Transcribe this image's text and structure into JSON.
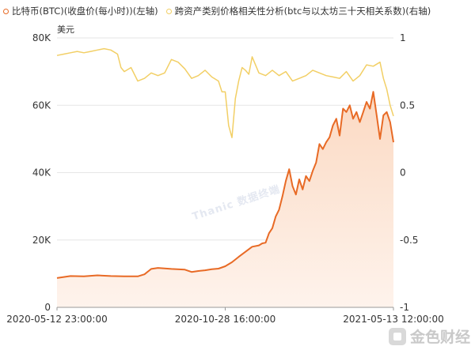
{
  "legend": {
    "btc_label": "比特币(BTC)(收盘价(每小时))(左轴)",
    "corr_label": "跨资产类别价格相关性分析(btc与以太坊三十天相关系数)(右轴)"
  },
  "unit_label": "美元",
  "watermark": "Thanic 数据终端",
  "logo_text": "金色财经",
  "colors": {
    "btc": "#e86a25",
    "btc_fill_top": "#fbd9c2",
    "btc_fill_bottom": "#fef3ec",
    "corr": "#f2cf65",
    "grid": "#e6e6e6",
    "axis_text": "#333333"
  },
  "chart_data": {
    "type": "line",
    "x_tick_labels": [
      "2020-05-12 23:00:00",
      "2020-10-28 16:00:00",
      "2021-05-13 12:00:00"
    ],
    "left_axis": {
      "ticks": [
        "0",
        "20K",
        "40K",
        "60K",
        "80K"
      ],
      "ylim": [
        0,
        80000
      ]
    },
    "right_axis": {
      "ticks": [
        "-1",
        "-0.5",
        "0",
        "0.5",
        "1"
      ],
      "ylim": [
        -1,
        1
      ]
    },
    "grid": true,
    "legend_position": "top-left",
    "series": [
      {
        "name": "比特币(BTC)(收盘价(每小时))(左轴)",
        "axis": "left",
        "x": [
          0,
          0.04,
          0.08,
          0.12,
          0.16,
          0.2,
          0.24,
          0.26,
          0.28,
          0.3,
          0.34,
          0.38,
          0.4,
          0.42,
          0.44,
          0.46,
          0.48,
          0.5,
          0.52,
          0.54,
          0.56,
          0.58,
          0.6,
          0.61,
          0.62,
          0.63,
          0.64,
          0.65,
          0.66,
          0.67,
          0.68,
          0.69,
          0.7,
          0.71,
          0.72,
          0.73,
          0.74,
          0.75,
          0.76,
          0.77,
          0.78,
          0.79,
          0.8,
          0.81,
          0.82,
          0.83,
          0.84,
          0.85,
          0.86,
          0.87,
          0.88,
          0.89,
          0.9,
          0.91,
          0.92,
          0.93,
          0.94,
          0.95,
          0.96,
          0.97,
          0.98,
          0.99,
          1.0
        ],
        "values": [
          8700,
          9300,
          9200,
          9500,
          9300,
          9200,
          9200,
          9800,
          11400,
          11700,
          11400,
          11200,
          10500,
          10800,
          11000,
          11300,
          11500,
          12200,
          13400,
          15000,
          16500,
          18000,
          18400,
          19000,
          19200,
          22000,
          23500,
          27000,
          29000,
          33000,
          37500,
          41000,
          36000,
          33500,
          38000,
          35000,
          39000,
          37500,
          40500,
          43000,
          48500,
          47000,
          49000,
          50500,
          54000,
          56000,
          51000,
          59000,
          58000,
          60000,
          56000,
          58000,
          55000,
          58000,
          61000,
          59000,
          64000,
          57000,
          50000,
          57000,
          58000,
          55000,
          49000
        ]
      },
      {
        "name": "跨资产类别价格相关性分析(btc与以太坊三十天相关系数)(右轴)",
        "axis": "right",
        "x": [
          0,
          0.02,
          0.04,
          0.06,
          0.08,
          0.1,
          0.12,
          0.14,
          0.16,
          0.18,
          0.19,
          0.2,
          0.22,
          0.24,
          0.26,
          0.28,
          0.3,
          0.32,
          0.34,
          0.36,
          0.38,
          0.4,
          0.42,
          0.44,
          0.46,
          0.48,
          0.49,
          0.5,
          0.51,
          0.52,
          0.53,
          0.54,
          0.55,
          0.56,
          0.57,
          0.58,
          0.6,
          0.62,
          0.64,
          0.66,
          0.68,
          0.7,
          0.72,
          0.74,
          0.76,
          0.78,
          0.8,
          0.82,
          0.84,
          0.86,
          0.88,
          0.9,
          0.92,
          0.94,
          0.96,
          0.97,
          0.98,
          0.99,
          1.0
        ],
        "values": [
          0.87,
          0.88,
          0.89,
          0.9,
          0.89,
          0.9,
          0.91,
          0.92,
          0.91,
          0.88,
          0.78,
          0.75,
          0.78,
          0.68,
          0.7,
          0.74,
          0.72,
          0.74,
          0.84,
          0.82,
          0.77,
          0.7,
          0.72,
          0.76,
          0.71,
          0.68,
          0.6,
          0.6,
          0.35,
          0.26,
          0.55,
          0.68,
          0.78,
          0.76,
          0.73,
          0.86,
          0.74,
          0.72,
          0.76,
          0.72,
          0.75,
          0.68,
          0.7,
          0.72,
          0.76,
          0.74,
          0.72,
          0.71,
          0.7,
          0.75,
          0.68,
          0.72,
          0.8,
          0.79,
          0.82,
          0.7,
          0.62,
          0.5,
          0.42
        ]
      }
    ]
  }
}
